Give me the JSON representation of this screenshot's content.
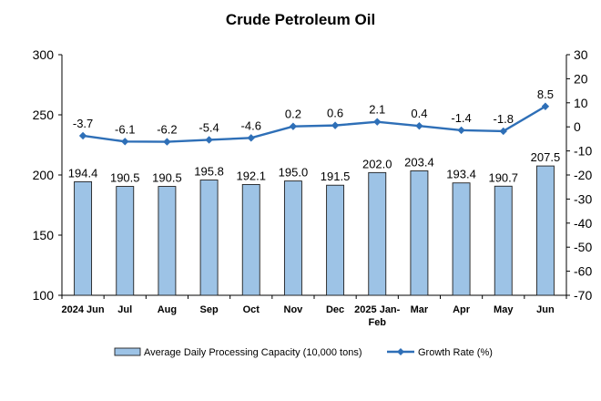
{
  "chart_data": {
    "type": "bar",
    "title": "Crude Petroleum Oil",
    "categories": [
      "2024 Jun",
      "Jul",
      "Aug",
      "Sep",
      "Oct",
      "Nov",
      "Dec",
      "2025 Jan-Feb",
      "Mar",
      "Apr",
      "May",
      "Jun"
    ],
    "series": [
      {
        "name": "Average Daily Processing Capacity (10,000 tons)",
        "type": "bar",
        "axis": "left",
        "color": "#9dc3e6",
        "values": [
          194.4,
          190.5,
          190.5,
          195.8,
          192.1,
          195.0,
          191.5,
          202.0,
          203.4,
          193.4,
          190.7,
          207.5
        ],
        "labels": [
          "194.4",
          "190.5",
          "190.5",
          "195.8",
          "192.1",
          "195.0",
          "191.5",
          "202.0",
          "203.4",
          "193.4",
          "190.7",
          "207.5"
        ]
      },
      {
        "name": "Growth Rate (%)",
        "type": "line",
        "axis": "right",
        "color": "#2e6fb7",
        "values": [
          -3.7,
          -6.1,
          -6.2,
          -5.4,
          -4.6,
          0.2,
          0.6,
          2.1,
          0.4,
          -1.4,
          -1.8,
          8.5
        ],
        "labels": [
          "-3.7",
          "-6.1",
          "-6.2",
          "-5.4",
          "-4.6",
          "0.2",
          "0.6",
          "2.1",
          "0.4",
          "-1.4",
          "-1.8",
          "8.5"
        ]
      }
    ],
    "y_left": {
      "min": 100,
      "max": 300,
      "ticks": [
        "100",
        "150",
        "200",
        "250",
        "300"
      ]
    },
    "y_right": {
      "min": -70,
      "max": 30,
      "ticks": [
        "30",
        "20",
        "10",
        "0",
        "-10",
        "-20",
        "-30",
        "-40",
        "-50",
        "-60",
        "-70"
      ]
    },
    "grid": false,
    "legend_position": "bottom"
  }
}
